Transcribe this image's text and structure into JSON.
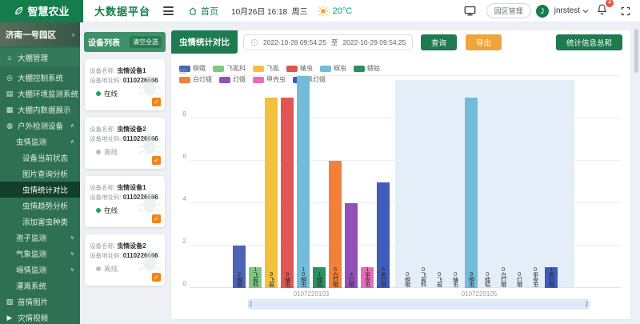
{
  "header": {
    "logo": "智慧农业",
    "platform": "大数据平台",
    "home": "首页",
    "date": "10月26日 16:18",
    "weekday": "周三",
    "temperature": "20°C",
    "park_manage": "园区管理",
    "avatar_letter": "J",
    "username": "jnrstest",
    "notification_count": "4",
    "icons": [
      "leaf-icon",
      "menu-icon",
      "home-icon",
      "sun-icon",
      "monitor-icon",
      "bell-icon",
      "chevron-down-icon",
      "fullscreen-icon"
    ]
  },
  "sidebar": {
    "park": "济南一号园区",
    "items": [
      {
        "id": "greenhouse-manage",
        "label": "大棚管理",
        "icon": "home-icon",
        "level": 0,
        "section": true
      },
      {
        "id": "greenhouse-control",
        "label": "大棚控制系统",
        "icon": "control-icon",
        "level": 0
      },
      {
        "id": "greenhouse-env-monitor",
        "label": "大棚环境监测系统",
        "icon": "env-monitor-icon",
        "level": 0
      },
      {
        "id": "greenhouse-data-display",
        "label": "大棚内数据展示",
        "icon": "data-display-icon",
        "level": 0
      },
      {
        "id": "outdoor-devices",
        "label": "户外检测设备",
        "icon": "outdoor-icon",
        "level": 0,
        "expand": "up"
      },
      {
        "id": "insect-monitor",
        "label": "虫情监测",
        "level": 1,
        "expand": "up"
      },
      {
        "id": "device-status",
        "label": "设备当前状态",
        "level": 2
      },
      {
        "id": "image-query",
        "label": "图片查询分析",
        "level": 2
      },
      {
        "id": "insect-stats-compare",
        "label": "虫情统计对比",
        "level": 2,
        "active": true
      },
      {
        "id": "insect-trend",
        "label": "虫情趋势分析",
        "level": 2
      },
      {
        "id": "add-pest-type",
        "label": "添加害虫种类",
        "level": 2
      },
      {
        "id": "spore-monitor",
        "label": "孢子监测",
        "level": 1,
        "expand": "down"
      },
      {
        "id": "weather-monitor",
        "label": "气象监测",
        "level": 1,
        "expand": "down"
      },
      {
        "id": "soil-monitor",
        "label": "墒情监测",
        "level": 1,
        "expand": "down"
      },
      {
        "id": "irrigation-system",
        "label": "灌溉系统",
        "level": 1
      },
      {
        "id": "seedling-images",
        "label": "苗情图片",
        "icon": "seedling-image-icon",
        "level": 0
      },
      {
        "id": "disaster-videos",
        "label": "灾情视频",
        "icon": "disaster-video-icon",
        "level": 0
      }
    ]
  },
  "device_panel": {
    "title": "设备列表",
    "clear_all": "清空全选",
    "name_label": "设备名称:",
    "code_label": "设备地址码:",
    "devices": [
      {
        "name": "虫情设备1",
        "code": "0110226666",
        "status": "在线",
        "online": true,
        "checked": true
      },
      {
        "name": "虫情设备2",
        "code": "0110226666",
        "status": "离线",
        "online": false,
        "checked": true
      },
      {
        "name": "虫情设备1",
        "code": "0110226666",
        "status": "在线",
        "online": true,
        "checked": true
      },
      {
        "name": "虫情设备2",
        "code": "0110226666",
        "status": "离线",
        "online": false,
        "checked": true
      }
    ]
  },
  "main": {
    "panel_title": "虫情统计对比",
    "date_from": "2022-10-28 09:54:25",
    "to_label": "至",
    "date_to": "2022-10-29 09:54:25",
    "query_btn": "查询",
    "export_btn": "导出",
    "sum_btn": "统计信息总和"
  },
  "chart_data": {
    "type": "bar",
    "title": "虫情统计对比",
    "categories": [
      "0107220103",
      "0107220105"
    ],
    "series": [
      {
        "name": "螟蛾",
        "color": "#4c63b6",
        "values": [
          2,
          0
        ]
      },
      {
        "name": "飞虱科",
        "color": "#7fc97f",
        "values": [
          1,
          0
        ]
      },
      {
        "name": "飞虱",
        "color": "#f3c13d",
        "values": [
          9,
          0
        ]
      },
      {
        "name": "蝽虫",
        "color": "#e15552",
        "values": [
          9,
          0
        ]
      },
      {
        "name": "螟虫",
        "color": "#72bcd9",
        "values": [
          10,
          9
        ]
      },
      {
        "name": "蝼蛄",
        "color": "#2a9161",
        "values": [
          1,
          0
        ]
      },
      {
        "name": "白灯蛾",
        "color": "#f28038",
        "values": [
          6,
          0
        ]
      },
      {
        "name": "灯蛾",
        "color": "#9151b8",
        "values": [
          4,
          0
        ]
      },
      {
        "name": "甲壳虫",
        "color": "#e96bb9",
        "values": [
          1,
          0
        ]
      },
      {
        "name": "黑灯蛾",
        "color": "#3f5cba",
        "values": [
          5,
          1
        ]
      }
    ],
    "ylabel": "",
    "xlabel": "",
    "ylim": [
      0,
      10
    ],
    "yticks": [
      0,
      2,
      4,
      6,
      8,
      10
    ],
    "grid": true,
    "legend_position": "top-left",
    "highlight_band_category": "0107220105"
  }
}
